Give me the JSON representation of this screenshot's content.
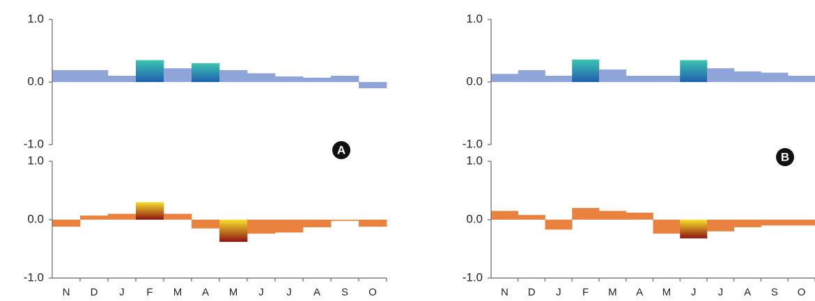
{
  "chart_data": [
    {
      "type": "bar",
      "label": "A",
      "values": [
        0.19,
        0.19,
        0.1,
        0.35,
        0.22,
        0.3,
        0.19,
        0.14,
        0.09,
        0.07,
        0.1,
        -0.1
      ],
      "colors": [
        "#8fa4d8",
        "#8fa4d8",
        "#8fa4d8",
        [
          "#3cc4b0",
          "#1f5fae"
        ],
        "#8fa4d8",
        [
          "#3cc4b0",
          "#1f5fae"
        ],
        "#8fa4d8",
        "#8fa4d8",
        "#8fa4d8",
        "#8fa4d8",
        "#8fa4d8",
        "#8fa4d8"
      ],
      "ylim": [
        -1,
        1
      ],
      "yticks": [
        {
          "value": -1,
          "label": "-1.0"
        },
        {
          "value": 0,
          "label": "0.0"
        },
        {
          "value": 1,
          "label": "1.0"
        }
      ]
    },
    {
      "type": "bar",
      "categories": [
        "N",
        "D",
        "J",
        "F",
        "M",
        "A",
        "M",
        "J",
        "J",
        "A",
        "S",
        "O"
      ],
      "values": [
        -0.12,
        0.07,
        0.1,
        0.3,
        0.1,
        -0.15,
        -0.38,
        -0.24,
        -0.22,
        -0.13,
        -0.02,
        -0.12
      ],
      "colors": [
        "#e8823e",
        "#e8823e",
        "#e8823e",
        [
          "#f7e02a",
          "#8e1414"
        ],
        "#e8823e",
        "#e8823e",
        [
          "#f7e02a",
          "#8e1414"
        ],
        "#e8823e",
        "#e8823e",
        "#e8823e",
        "#e8823e",
        "#e8823e"
      ],
      "ylim": [
        -1,
        1
      ],
      "yticks": [
        {
          "value": -1,
          "label": "-1.0"
        },
        {
          "value": 0,
          "label": "0.0"
        },
        {
          "value": 1,
          "label": "1.0"
        }
      ]
    },
    {
      "type": "bar",
      "label": "B",
      "values": [
        0.13,
        0.19,
        0.1,
        0.36,
        0.2,
        0.1,
        0.1,
        0.35,
        0.22,
        0.17,
        0.15,
        0.1
      ],
      "colors": [
        "#8fa4d8",
        "#8fa4d8",
        "#8fa4d8",
        [
          "#3cc4b0",
          "#1f5fae"
        ],
        "#8fa4d8",
        "#8fa4d8",
        "#8fa4d8",
        [
          "#3cc4b0",
          "#1f5fae"
        ],
        "#8fa4d8",
        "#8fa4d8",
        "#8fa4d8",
        "#8fa4d8"
      ],
      "ylim": [
        -1,
        1
      ],
      "yticks": [
        {
          "value": -1,
          "label": "-1.0"
        },
        {
          "value": 0,
          "label": "0.0"
        },
        {
          "value": 1,
          "label": "1.0"
        }
      ]
    },
    {
      "type": "bar",
      "categories": [
        "N",
        "D",
        "J",
        "F",
        "M",
        "A",
        "M",
        "J",
        "J",
        "A",
        "S",
        "O"
      ],
      "values": [
        0.15,
        0.08,
        -0.17,
        0.2,
        0.15,
        0.12,
        -0.24,
        -0.32,
        -0.2,
        -0.13,
        -0.1,
        -0.1
      ],
      "colors": [
        "#e8823e",
        "#e8823e",
        "#e8823e",
        "#e8823e",
        "#e8823e",
        "#e8823e",
        "#e8823e",
        [
          "#f7e02a",
          "#8e1414"
        ],
        "#e8823e",
        "#e8823e",
        "#e8823e",
        "#e8823e"
      ],
      "ylim": [
        -1,
        1
      ],
      "yticks": [
        {
          "value": -1,
          "label": "-1.0"
        },
        {
          "value": 0,
          "label": "0.0"
        },
        {
          "value": 1,
          "label": "1.0"
        }
      ]
    }
  ]
}
